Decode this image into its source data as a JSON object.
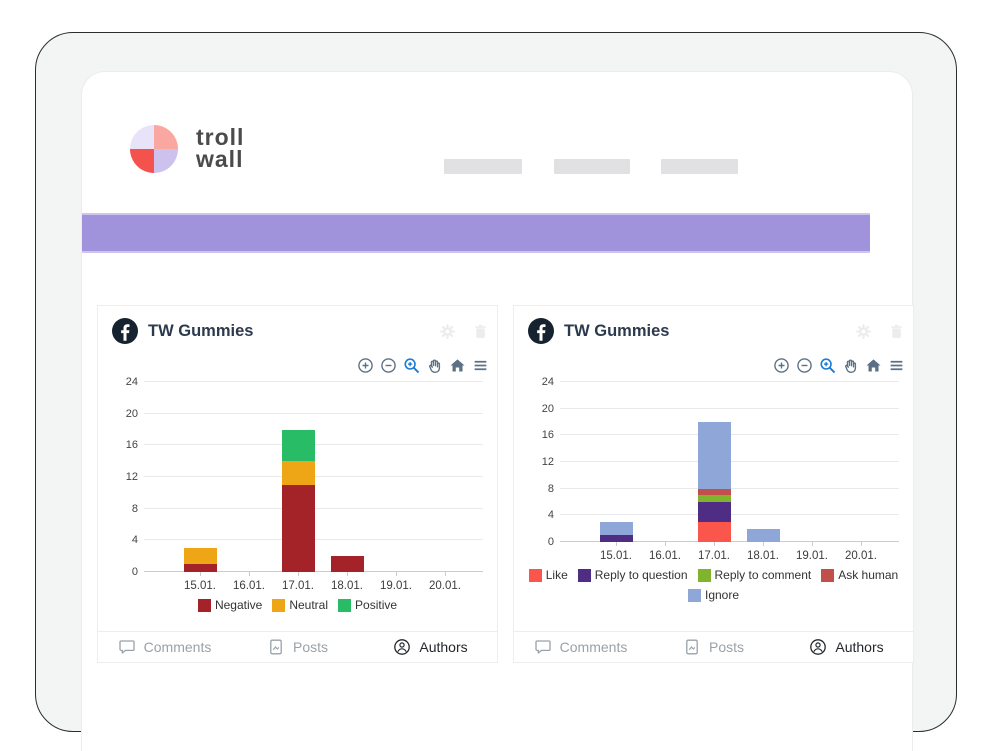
{
  "brand": {
    "line1": "troll",
    "line2": "wall"
  },
  "header": {
    "nav_placeholder_count": 3
  },
  "banner": {
    "color": "#a093dc"
  },
  "cards": [
    {
      "source_icon": "facebook",
      "title": "TW Gummies",
      "header_actions": [
        "settings",
        "delete"
      ],
      "modebar": {
        "tools": [
          "zoom-in",
          "zoom-out",
          "box-zoom",
          "pan",
          "home",
          "menu"
        ],
        "active_tool": "box-zoom"
      },
      "tabs": [
        {
          "label": "Comments",
          "active": false
        },
        {
          "label": "Posts",
          "active": false
        },
        {
          "label": "Authors",
          "active": true
        }
      ]
    },
    {
      "source_icon": "facebook",
      "title": "TW Gummies",
      "header_actions": [
        "settings",
        "delete"
      ],
      "modebar": {
        "tools": [
          "zoom-in",
          "zoom-out",
          "box-zoom",
          "pan",
          "home",
          "menu"
        ],
        "active_tool": "box-zoom"
      },
      "tabs": [
        {
          "label": "Comments",
          "active": false
        },
        {
          "label": "Posts",
          "active": false
        },
        {
          "label": "Authors",
          "active": true
        }
      ]
    }
  ],
  "chart_data": [
    {
      "type": "bar",
      "stacked": true,
      "title": "TW Gummies",
      "categories": [
        "15.01.",
        "16.01.",
        "17.01.",
        "18.01.",
        "19.01.",
        "20.01."
      ],
      "series": [
        {
          "name": "Negative",
          "color": "#a42329",
          "values": [
            1,
            0,
            11,
            2,
            0,
            0
          ]
        },
        {
          "name": "Neutral",
          "color": "#eea616",
          "values": [
            2,
            0,
            3,
            0,
            0,
            0
          ]
        },
        {
          "name": "Positive",
          "color": "#28bc66",
          "values": [
            0,
            0,
            4,
            0,
            0,
            0
          ]
        }
      ],
      "xlabel": "",
      "ylabel": "",
      "ylim": [
        0,
        24
      ],
      "yticks": [
        0,
        4,
        8,
        12,
        16,
        20,
        24
      ],
      "grid": true,
      "legend_position": "bottom"
    },
    {
      "type": "bar",
      "stacked": true,
      "title": "TW Gummies",
      "categories": [
        "15.01.",
        "16.01.",
        "17.01.",
        "18.01.",
        "19.01.",
        "20.01."
      ],
      "series": [
        {
          "name": "Like",
          "color": "#fa564c",
          "values": [
            0,
            0,
            3,
            0,
            0,
            0
          ]
        },
        {
          "name": "Reply to question",
          "color": "#4f2d85",
          "values": [
            1,
            0,
            3,
            0,
            0,
            0
          ]
        },
        {
          "name": "Reply to comment",
          "color": "#80b42d",
          "values": [
            0,
            0,
            1,
            0,
            0,
            0
          ]
        },
        {
          "name": "Ask human",
          "color": "#c2504a",
          "values": [
            0,
            0,
            1,
            0,
            0,
            0
          ]
        },
        {
          "name": "Ignore",
          "color": "#8fa6d9",
          "values": [
            2,
            0,
            10,
            2,
            0,
            0
          ]
        }
      ],
      "xlabel": "",
      "ylabel": "",
      "ylim": [
        0,
        24
      ],
      "yticks": [
        0,
        4,
        8,
        12,
        16,
        20,
        24
      ],
      "grid": true,
      "legend_position": "bottom"
    }
  ]
}
